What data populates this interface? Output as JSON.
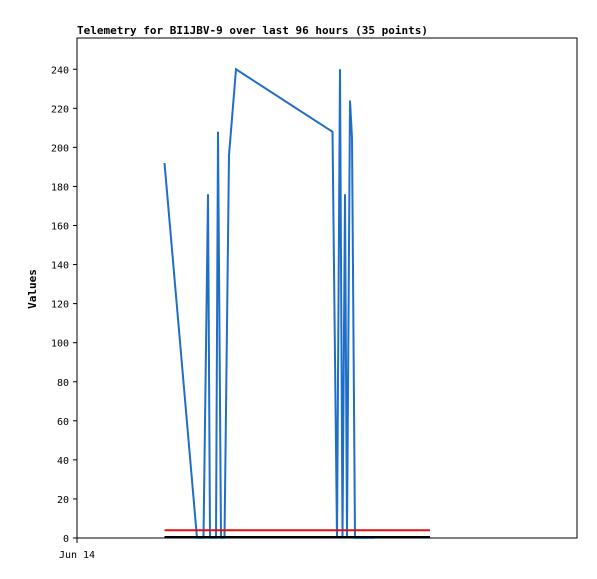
{
  "chart_data": {
    "type": "line",
    "title": "Telemetry for BI1JBV-9 over last 96 hours (35 points)",
    "xlabel": "",
    "ylabel": "Values",
    "x_tick_labels": [
      "Jun 14"
    ],
    "ylim": [
      0,
      256
    ],
    "y_ticks": [
      0,
      20,
      40,
      60,
      80,
      100,
      120,
      140,
      160,
      180,
      200,
      220,
      240
    ],
    "xlim": [
      0,
      1
    ],
    "grid": false,
    "series": [
      {
        "color": "#1f6ec8",
        "x": [
          0.175,
          0.24,
          0.253,
          0.262,
          0.266,
          0.278,
          0.282,
          0.288,
          0.295,
          0.304,
          0.318,
          0.511,
          0.52,
          0.526,
          0.531,
          0.536,
          0.54,
          0.546,
          0.55,
          0.556,
          0.56,
          0.566,
          0.573,
          0.578,
          0.586,
          0.59,
          0.595
        ],
        "y": [
          192,
          0,
          0,
          176,
          0,
          0,
          208,
          0,
          0,
          196,
          240,
          208,
          0,
          240,
          0,
          176,
          0,
          224,
          205,
          0,
          0,
          0,
          0,
          0,
          0,
          0,
          0
        ]
      },
      {
        "color": "#e01010",
        "x": [
          0.175,
          0.706
        ],
        "y": [
          4,
          4
        ]
      },
      {
        "color": "#000000",
        "x": [
          0.175,
          0.706
        ],
        "y": [
          0.5,
          0.5
        ]
      }
    ]
  }
}
